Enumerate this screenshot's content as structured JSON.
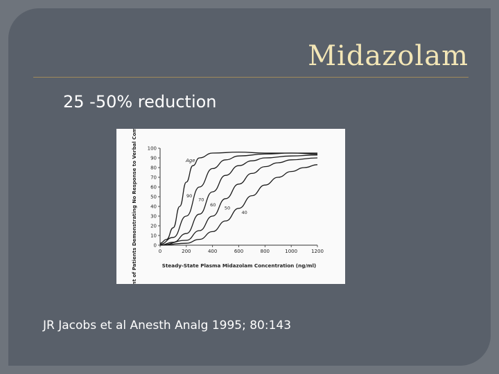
{
  "slide": {
    "title": "Midazolam",
    "subtitle": "25 -50% reduction",
    "citation": "JR Jacobs et al Anesth Analg 1995; 80:143"
  },
  "chart_data": {
    "type": "line",
    "ylabel": "Percent of Patients Demonstrating No Response to Verbal Command",
    "xlabel": "Steady-State Plasma Midazolam Concentration (ng/ml)",
    "xlim": [
      0,
      1200
    ],
    "ylim": [
      0,
      100
    ],
    "x_ticks": [
      "0",
      "200",
      "400",
      "600",
      "800",
      "1000",
      "1200"
    ],
    "y_ticks": [
      "0",
      "10",
      "20",
      "30",
      "40",
      "50",
      "60",
      "70",
      "80",
      "90",
      "100"
    ],
    "legend_title": "Age",
    "series": [
      {
        "name": "90",
        "values": [
          [
            0,
            2
          ],
          [
            50,
            6
          ],
          [
            100,
            18
          ],
          [
            150,
            40
          ],
          [
            200,
            65
          ],
          [
            250,
            82
          ],
          [
            300,
            90
          ],
          [
            400,
            95
          ],
          [
            600,
            96
          ],
          [
            800,
            95
          ],
          [
            1000,
            95
          ],
          [
            1200,
            94
          ]
        ]
      },
      {
        "name": "70",
        "values": [
          [
            0,
            1
          ],
          [
            100,
            8
          ],
          [
            200,
            30
          ],
          [
            300,
            60
          ],
          [
            400,
            79
          ],
          [
            500,
            88
          ],
          [
            600,
            92
          ],
          [
            800,
            94
          ],
          [
            1000,
            95
          ],
          [
            1200,
            95
          ]
        ]
      },
      {
        "name": "60",
        "values": [
          [
            0,
            0
          ],
          [
            100,
            3
          ],
          [
            200,
            12
          ],
          [
            300,
            32
          ],
          [
            400,
            55
          ],
          [
            500,
            72
          ],
          [
            600,
            82
          ],
          [
            700,
            87
          ],
          [
            800,
            90
          ],
          [
            1000,
            92
          ],
          [
            1200,
            93
          ]
        ]
      },
      {
        "name": "50",
        "values": [
          [
            0,
            0
          ],
          [
            200,
            5
          ],
          [
            300,
            15
          ],
          [
            400,
            30
          ],
          [
            500,
            48
          ],
          [
            600,
            63
          ],
          [
            700,
            74
          ],
          [
            800,
            81
          ],
          [
            900,
            85
          ],
          [
            1000,
            88
          ],
          [
            1200,
            90
          ]
        ]
      },
      {
        "name": "40",
        "values": [
          [
            0,
            0
          ],
          [
            200,
            2
          ],
          [
            300,
            6
          ],
          [
            400,
            14
          ],
          [
            500,
            25
          ],
          [
            600,
            38
          ],
          [
            700,
            51
          ],
          [
            800,
            62
          ],
          [
            900,
            70
          ],
          [
            1000,
            76
          ],
          [
            1100,
            80
          ],
          [
            1200,
            83
          ]
        ]
      }
    ]
  }
}
